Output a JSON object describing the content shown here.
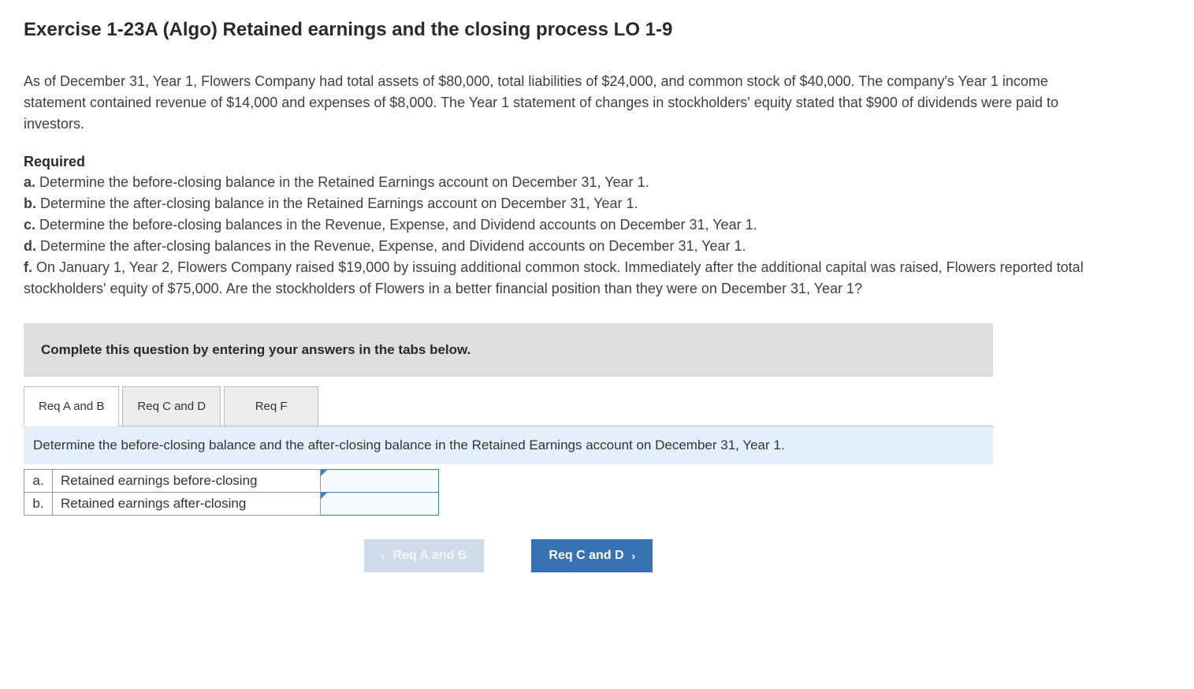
{
  "title": "Exercise 1-23A (Algo) Retained earnings and the closing process LO 1-9",
  "problem_text": "As of December 31, Year 1, Flowers Company had total assets of $80,000, total liabilities of $24,000, and common stock of $40,000. The company's Year 1 income statement contained revenue of $14,000 and expenses of $8,000. The Year 1 statement of changes in stockholders' equity stated that $900 of dividends were paid to investors.",
  "required_label": "Required",
  "requirements": [
    {
      "letter": "a.",
      "text": " Determine the before-closing balance in the Retained Earnings account on December 31, Year 1."
    },
    {
      "letter": "b.",
      "text": " Determine the after-closing balance in the Retained Earnings account on December 31, Year 1."
    },
    {
      "letter": "c.",
      "text": " Determine the before-closing balances in the Revenue, Expense, and Dividend accounts on December 31, Year 1."
    },
    {
      "letter": "d.",
      "text": " Determine the after-closing balances in the Revenue, Expense, and Dividend accounts on December 31, Year 1."
    },
    {
      "letter": "f.",
      "text": " On January 1, Year 2, Flowers Company raised $19,000 by issuing additional common stock. Immediately after the additional capital was raised, Flowers reported total stockholders' equity of $75,000. Are the stockholders of Flowers in a better financial position than they were on December 31, Year 1?"
    }
  ],
  "instruction": "Complete this question by entering your answers in the tabs below.",
  "tabs": [
    {
      "label": "Req A and B",
      "active": true
    },
    {
      "label": "Req C and D",
      "active": false
    },
    {
      "label": "Req F",
      "active": false
    }
  ],
  "tab_prompt": "Determine the before-closing balance and the after-closing balance in the Retained Earnings account on December 31, Year 1.",
  "answer_rows": [
    {
      "letter": "a.",
      "label": "Retained earnings before-closing",
      "value": ""
    },
    {
      "letter": "b.",
      "label": "Retained earnings after-closing",
      "value": ""
    }
  ],
  "nav": {
    "prev_label": "Req A and B",
    "next_label": "Req C and D",
    "chev_left": "‹",
    "chev_right": "›"
  },
  "colors": {
    "instruction_bg": "#dedede",
    "tab_prompt_bg": "#e3f0fb",
    "input_border": "#3b7fc4",
    "btn_enabled_bg": "#3972b3",
    "btn_disabled_bg": "#cfdbe8"
  }
}
